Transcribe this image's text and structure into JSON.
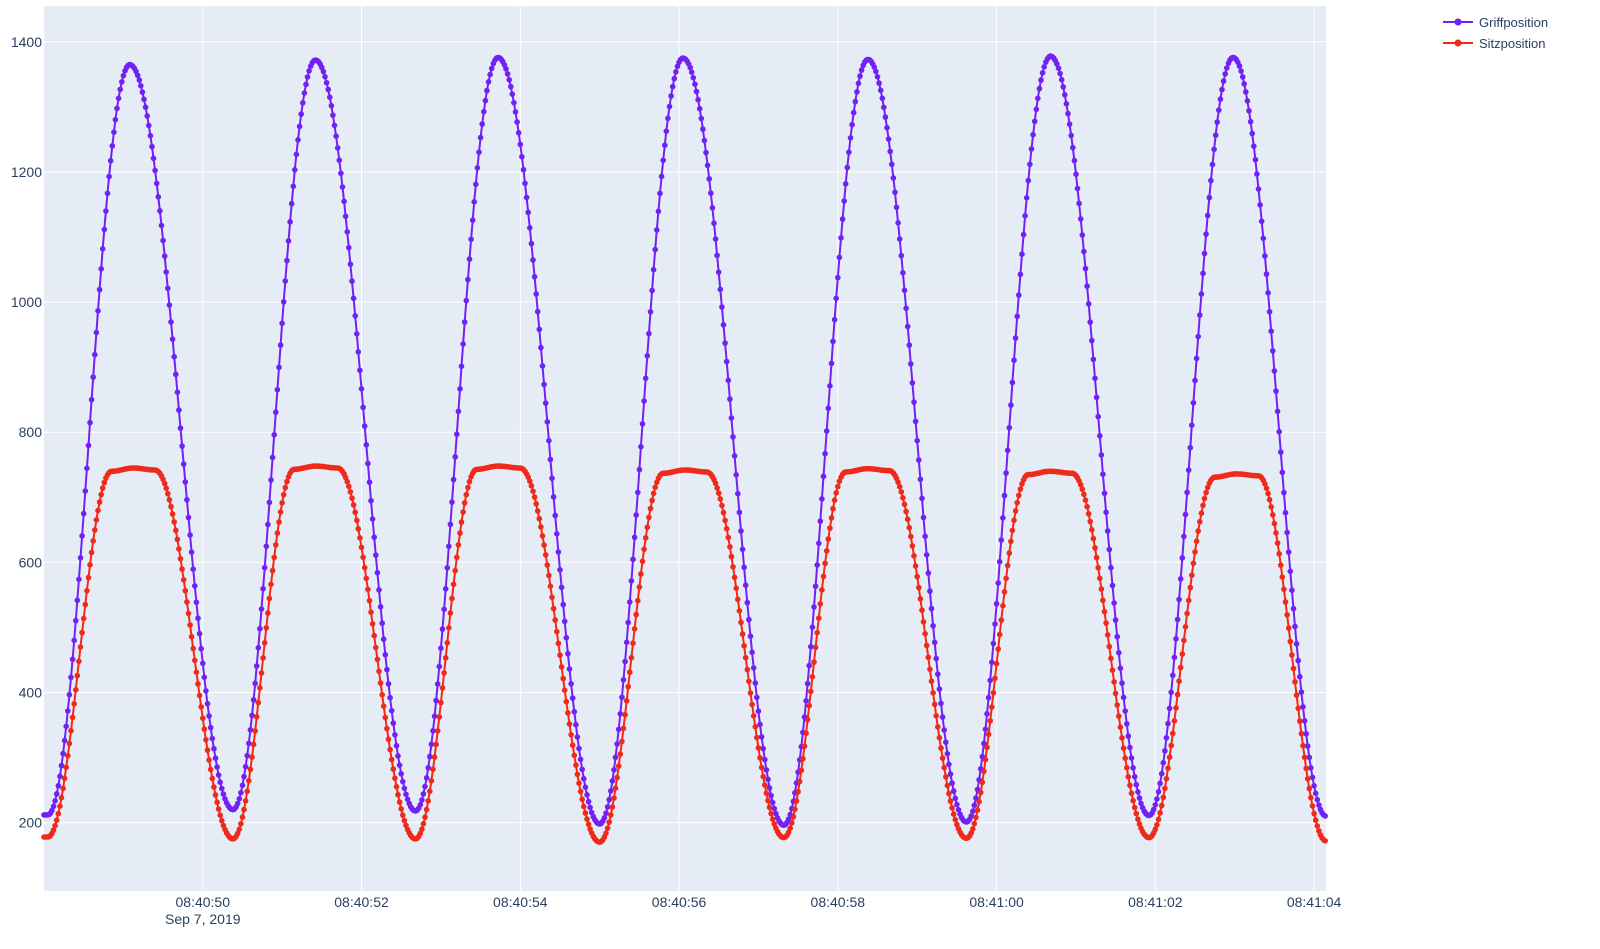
{
  "chart_data": {
    "type": "line",
    "title": "",
    "xlabel": "",
    "ylabel": "",
    "x_axis": {
      "type": "time",
      "range": [
        "2019-09-07T08:40:48.00",
        "2019-09-07T08:41:04.15"
      ],
      "ticks": [
        "08:40:50",
        "08:40:52",
        "08:40:54",
        "08:40:56",
        "08:40:58",
        "08:41:00",
        "08:41:02",
        "08:41:04"
      ],
      "first_tick_date": "Sep 7, 2019"
    },
    "y_axis": {
      "range": [
        95,
        1455
      ],
      "ticks": [
        "200",
        "400",
        "600",
        "800",
        "1000",
        "1200",
        "1400"
      ]
    },
    "grid": true,
    "legend_position": "top-right",
    "plot_background": "#e5ecf6",
    "sample_interval_seconds": 0.02,
    "series": [
      {
        "name": "Griffposition",
        "color": "#7221f5",
        "marker": "circle",
        "mode": "lines+markers",
        "period_seconds": 2.3,
        "peaks": [
          {
            "time": "08:40:49.08",
            "value": 1365
          },
          {
            "time": "08:40:51.42",
            "value": 1372
          },
          {
            "time": "08:40:53.72",
            "value": 1376
          },
          {
            "time": "08:40:56.05",
            "value": 1375
          },
          {
            "time": "08:40:58.38",
            "value": 1373
          },
          {
            "time": "08:41:00.68",
            "value": 1378
          },
          {
            "time": "08:41:02.98",
            "value": 1376
          }
        ],
        "troughs": [
          {
            "time": "08:40:48.05",
            "value": 212
          },
          {
            "time": "08:40:50.38",
            "value": 220
          },
          {
            "time": "08:40:52.68",
            "value": 218
          },
          {
            "time": "08:40:55.00",
            "value": 198
          },
          {
            "time": "08:40:57.32",
            "value": 196
          },
          {
            "time": "08:40:59.62",
            "value": 201
          },
          {
            "time": "08:41:01.92",
            "value": 211
          },
          {
            "time": "08:41:04.15",
            "value": 210
          }
        ]
      },
      {
        "name": "Sitzposition",
        "color": "#ef2a1a",
        "marker": "circle",
        "mode": "lines+markers",
        "period_seconds": 2.3,
        "plateaus": [
          {
            "start": "08:40:48.85",
            "end": "08:40:49.40",
            "value": 745
          },
          {
            "start": "08:40:51.15",
            "end": "08:40:51.70",
            "value": 748
          },
          {
            "start": "08:40:53.45",
            "end": "08:40:54.00",
            "value": 748
          },
          {
            "start": "08:40:55.80",
            "end": "08:40:56.35",
            "value": 742
          },
          {
            "start": "08:40:58.10",
            "end": "08:40:58.65",
            "value": 744
          },
          {
            "start": "08:41:00.40",
            "end": "08:41:00.95",
            "value": 740
          },
          {
            "start": "08:41:02.75",
            "end": "08:41:03.30",
            "value": 736
          }
        ],
        "troughs": [
          {
            "time": "08:40:48.05",
            "value": 178
          },
          {
            "time": "08:40:50.38",
            "value": 175
          },
          {
            "time": "08:40:52.68",
            "value": 175
          },
          {
            "time": "08:40:55.00",
            "value": 170
          },
          {
            "time": "08:40:57.32",
            "value": 177
          },
          {
            "time": "08:40:59.62",
            "value": 176
          },
          {
            "time": "08:41:01.92",
            "value": 177
          },
          {
            "time": "08:41:04.15",
            "value": 172
          }
        ]
      }
    ]
  }
}
